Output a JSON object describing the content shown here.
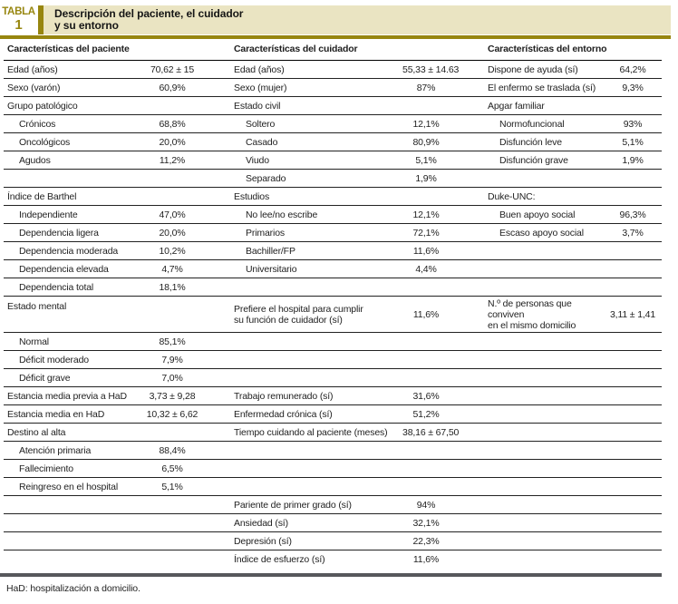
{
  "colors": {
    "olive": "#97860f",
    "cream": "#eae4c2",
    "footer_rule": "#57585c",
    "text": "#1f1f1f"
  },
  "header": {
    "table_label": "TABLA",
    "table_number": "1",
    "title": "Descripción del paciente, el cuidador\ny su entorno"
  },
  "columns": [
    {
      "id": "paciente",
      "header": "Características del paciente"
    },
    {
      "id": "cuidador",
      "header": "Características del cuidador"
    },
    {
      "id": "entorno",
      "header": "Características del entorno"
    }
  ],
  "rows": [
    {
      "p": {
        "label": "Edad (años)",
        "value": "70,62 ± 15"
      },
      "c": {
        "label": "Edad (años)",
        "value": "55,33 ± 14.63"
      },
      "e": {
        "label": "Dispone de ayuda (sí)",
        "value": "64,2%"
      }
    },
    {
      "p": {
        "label": "Sexo (varón)",
        "value": "60,9%"
      },
      "c": {
        "label": "Sexo (mujer)",
        "value": "87%"
      },
      "e": {
        "label": "El enfermo se traslada (sí)",
        "value": "9,3%"
      }
    },
    {
      "p": {
        "label": "Grupo patológico",
        "value": ""
      },
      "c": {
        "label": "Estado civil",
        "value": ""
      },
      "e": {
        "label": "Apgar familiar",
        "value": ""
      }
    },
    {
      "p": {
        "label": "Crónicos",
        "value": "68,8%",
        "indent": true
      },
      "c": {
        "label": "Soltero",
        "value": "12,1%",
        "indent": true
      },
      "e": {
        "label": "Normofuncional",
        "value": "93%",
        "indent": true
      }
    },
    {
      "p": {
        "label": "Oncológicos",
        "value": "20,0%",
        "indent": true
      },
      "c": {
        "label": "Casado",
        "value": "80,9%",
        "indent": true
      },
      "e": {
        "label": "Disfunción leve",
        "value": "5,1%",
        "indent": true
      }
    },
    {
      "p": {
        "label": "Agudos",
        "value": "11,2%",
        "indent": true
      },
      "c": {
        "label": "Viudo",
        "value": "5,1%",
        "indent": true
      },
      "e": {
        "label": "Disfunción grave",
        "value": "1,9%",
        "indent": true
      }
    },
    {
      "p": {
        "label": "",
        "value": ""
      },
      "c": {
        "label": "Separado",
        "value": "1,9%",
        "indent": true
      },
      "e": {
        "label": "",
        "value": ""
      }
    },
    {
      "p": {
        "label": "Índice de Barthel",
        "value": ""
      },
      "c": {
        "label": "Estudios",
        "value": ""
      },
      "e": {
        "label": "Duke-UNC:",
        "value": ""
      }
    },
    {
      "p": {
        "label": "Independiente",
        "value": "47,0%",
        "indent": true
      },
      "c": {
        "label": "No lee/no escribe",
        "value": "12,1%",
        "indent": true
      },
      "e": {
        "label": "Buen apoyo social",
        "value": "96,3%",
        "indent": true
      }
    },
    {
      "p": {
        "label": "Dependencia ligera",
        "value": "20,0%",
        "indent": true
      },
      "c": {
        "label": "Primarios",
        "value": "72,1%",
        "indent": true
      },
      "e": {
        "label": "Escaso apoyo social",
        "value": "3,7%",
        "indent": true
      }
    },
    {
      "p": {
        "label": "Dependencia moderada",
        "value": "10,2%",
        "indent": true
      },
      "c": {
        "label": "Bachiller/FP",
        "value": "11,6%",
        "indent": true
      },
      "e": {
        "label": "",
        "value": ""
      }
    },
    {
      "p": {
        "label": "Dependencia elevada",
        "value": "4,7%",
        "indent": true
      },
      "c": {
        "label": "Universitario",
        "value": "4,4%",
        "indent": true
      },
      "e": {
        "label": "",
        "value": ""
      }
    },
    {
      "p": {
        "label": "Dependencia total",
        "value": "18,1%",
        "indent": true
      },
      "c": {
        "label": "",
        "value": ""
      },
      "e": {
        "label": "",
        "value": ""
      }
    },
    {
      "tall": true,
      "p": {
        "label": "Estado mental",
        "value": "",
        "top": true
      },
      "c": {
        "label": "Prefiere el hospital para cumplir\nsu función de cuidador (sí)",
        "value": "11,6%"
      },
      "e": {
        "label": "N.º de personas que conviven\nen el mismo domicilio",
        "value": "3,11 ± 1,41"
      }
    },
    {
      "p": {
        "label": "Normal",
        "value": "85,1%",
        "indent": true
      },
      "c": {
        "label": "",
        "value": ""
      },
      "e": {
        "label": "",
        "value": ""
      }
    },
    {
      "p": {
        "label": "Déficit moderado",
        "value": "7,9%",
        "indent": true
      },
      "c": {
        "label": "",
        "value": ""
      },
      "e": {
        "label": "",
        "value": ""
      }
    },
    {
      "p": {
        "label": "Déficit grave",
        "value": "7,0%",
        "indent": true
      },
      "c": {
        "label": "",
        "value": ""
      },
      "e": {
        "label": "",
        "value": ""
      }
    },
    {
      "p": {
        "label": "Estancia media previa a HaD",
        "value": "3,73 ± 9,28"
      },
      "c": {
        "label": "Trabajo remunerado (sí)",
        "value": "31,6%"
      },
      "e": {
        "label": "",
        "value": ""
      }
    },
    {
      "p": {
        "label": "Estancia media en HaD",
        "value": "10,32 ± 6,62"
      },
      "c": {
        "label": "Enfermedad crónica (sí)",
        "value": "51,2%"
      },
      "e": {
        "label": "",
        "value": ""
      }
    },
    {
      "p": {
        "label": "Destino al alta",
        "value": ""
      },
      "c": {
        "label": "Tiempo cuidando al paciente (meses)",
        "value": "38,16 ± 67,50"
      },
      "e": {
        "label": "",
        "value": ""
      }
    },
    {
      "p": {
        "label": "Atención primaria",
        "value": "88,4%",
        "indent": true
      },
      "c": {
        "label": "",
        "value": ""
      },
      "e": {
        "label": "",
        "value": ""
      }
    },
    {
      "p": {
        "label": "Fallecimiento",
        "value": "6,5%",
        "indent": true
      },
      "c": {
        "label": "",
        "value": ""
      },
      "e": {
        "label": "",
        "value": ""
      }
    },
    {
      "p": {
        "label": "Reingreso en el hospital",
        "value": "5,1%",
        "indent": true
      },
      "c": {
        "label": "",
        "value": ""
      },
      "e": {
        "label": "",
        "value": ""
      }
    },
    {
      "p": {
        "label": "",
        "value": ""
      },
      "c": {
        "label": "Pariente de primer grado (sí)",
        "value": "94%"
      },
      "e": {
        "label": "",
        "value": ""
      }
    },
    {
      "p": {
        "label": "",
        "value": ""
      },
      "c": {
        "label": "Ansiedad (sí)",
        "value": "32,1%"
      },
      "e": {
        "label": "",
        "value": ""
      }
    },
    {
      "p": {
        "label": "",
        "value": ""
      },
      "c": {
        "label": "Depresión (sí)",
        "value": "22,3%"
      },
      "e": {
        "label": "",
        "value": ""
      }
    },
    {
      "p": {
        "label": "",
        "value": ""
      },
      "c": {
        "label": "Índice de esfuerzo (sí)",
        "value": "11,6%"
      },
      "e": {
        "label": "",
        "value": ""
      }
    }
  ],
  "footnote": "HaD: hospitalización a domicilio."
}
